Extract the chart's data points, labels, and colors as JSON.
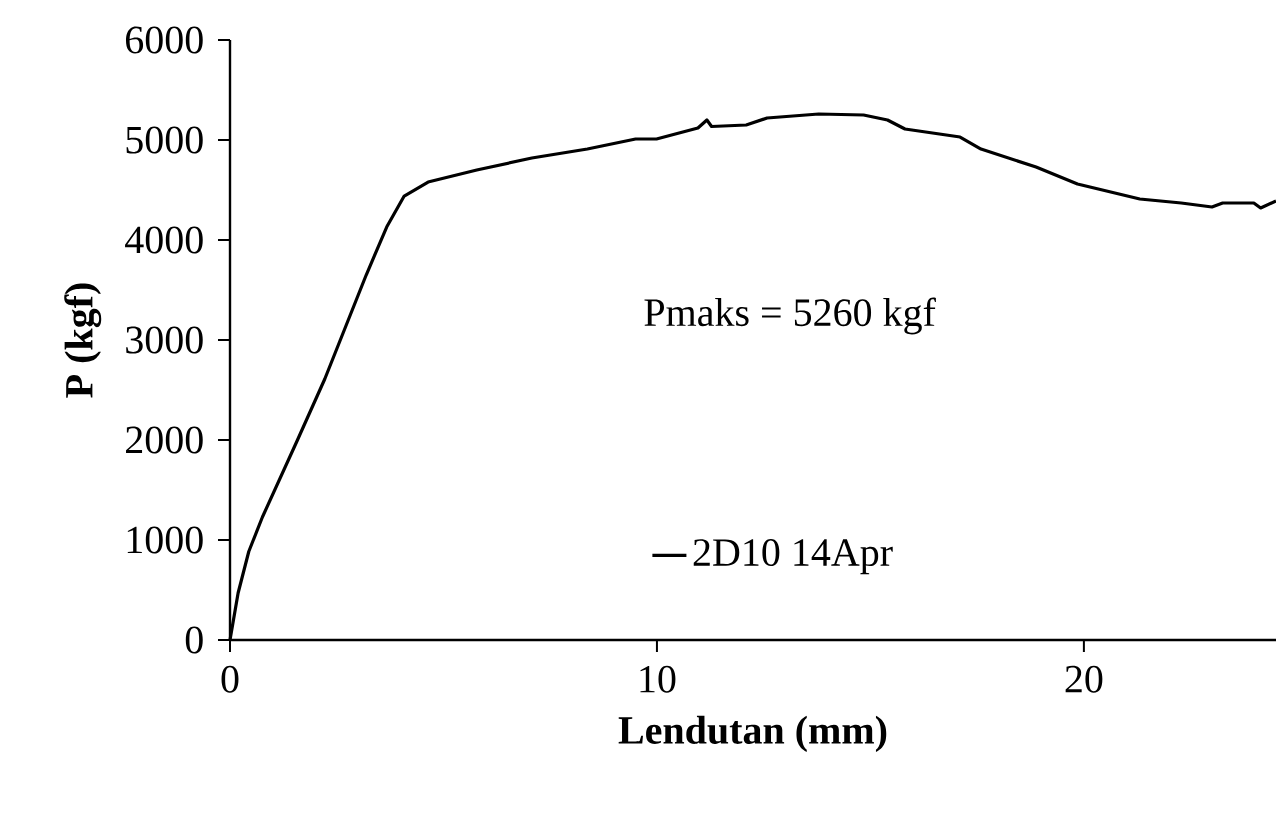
{
  "chart_data": {
    "type": "line",
    "xlabel": "Lendutan (mm)",
    "ylabel": "P (kgf)",
    "annotations": [
      "Pmaks = 5260 kgf"
    ],
    "xlim": [
      0,
      24.5
    ],
    "xticks": [
      0,
      10,
      20
    ],
    "ylim": [
      0,
      6000
    ],
    "yticks": [
      0,
      1000,
      2000,
      3000,
      4000,
      5000,
      6000
    ],
    "grid": false,
    "legend": "bottom",
    "marker": "none",
    "line_style": "solid",
    "series": [
      {
        "name": "2D10 14Apr",
        "color": "#000000",
        "x": [
          0,
          0.19,
          0.44,
          0.76,
          1.57,
          2.22,
          3.19,
          3.67,
          4.08,
          4.64,
          5.78,
          7.07,
          8.37,
          9.5,
          9.99,
          10.96,
          11.17,
          11.28,
          12.09,
          12.58,
          13.79,
          14.84,
          15.4,
          15.81,
          17.1,
          17.59,
          18.88,
          19.85,
          21.31,
          22.28,
          23.0,
          23.25,
          23.98,
          24.14,
          24.5
        ],
        "values": [
          0,
          470,
          885,
          1230,
          1990,
          2610,
          3650,
          4130,
          4440,
          4580,
          4700,
          4820,
          4910,
          5010,
          5010,
          5120,
          5200,
          5135,
          5150,
          5220,
          5260,
          5250,
          5200,
          5110,
          5030,
          4910,
          4730,
          4560,
          4410,
          4370,
          4330,
          4370,
          4370,
          4320,
          4390
        ]
      }
    ]
  }
}
